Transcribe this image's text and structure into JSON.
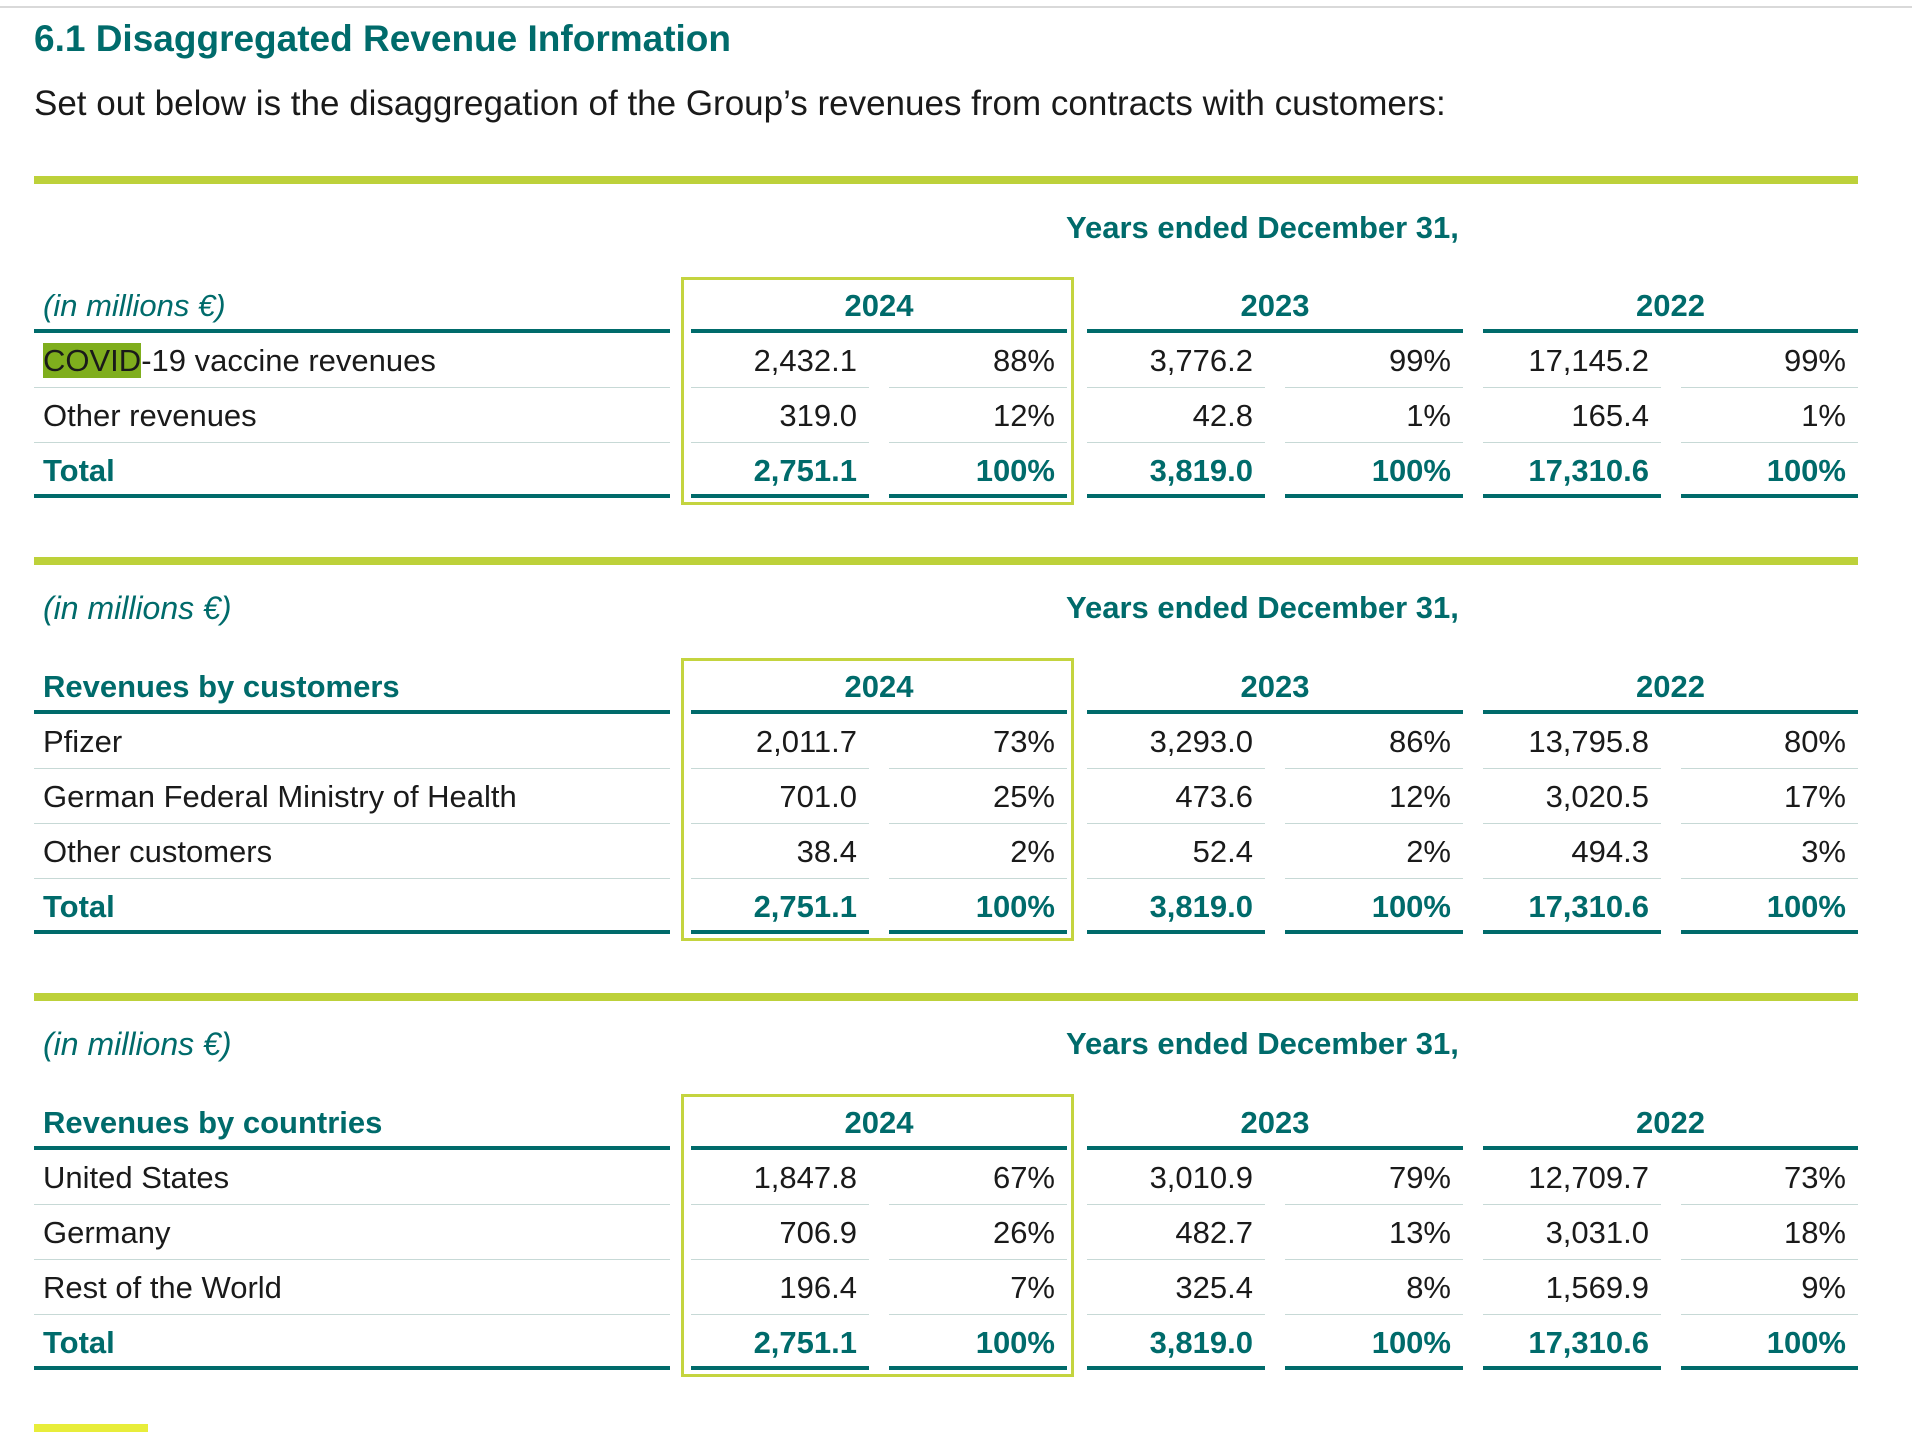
{
  "heading": "6.1 Disaggregated Revenue Information",
  "intro": "Set out below is the disaggregation of the Group’s revenues from contracts with customers:",
  "colors": {
    "accent_teal": "#006b6b",
    "accent_green": "#bdd13a",
    "highlight_2024": "#c4d43f"
  },
  "years_ended_label": "Years ended December 31,",
  "years": [
    "2024",
    "2023",
    "2022"
  ],
  "table1": {
    "unit_label": "(in millions €)",
    "rows": [
      {
        "label_highlight": "COVID",
        "label_rest": "-19 vaccine revenues",
        "values": [
          "2,432.1",
          "88%",
          "3,776.2",
          "99%",
          "17,145.2",
          "99%"
        ]
      },
      {
        "label": "Other revenues",
        "values": [
          "319.0",
          "12%",
          "42.8",
          "1%",
          "165.4",
          "1%"
        ]
      }
    ],
    "total": {
      "label": "Total",
      "values": [
        "2,751.1",
        "100%",
        "3,819.0",
        "100%",
        "17,310.6",
        "100%"
      ]
    }
  },
  "table2": {
    "unit_label": "(in millions €)",
    "header_label": "Revenues by customers",
    "rows": [
      {
        "label": "Pfizer",
        "values": [
          "2,011.7",
          "73%",
          "3,293.0",
          "86%",
          "13,795.8",
          "80%"
        ]
      },
      {
        "label": "German Federal Ministry of Health",
        "values": [
          "701.0",
          "25%",
          "473.6",
          "12%",
          "3,020.5",
          "17%"
        ]
      },
      {
        "label": "Other customers",
        "values": [
          "38.4",
          "2%",
          "52.4",
          "2%",
          "494.3",
          "3%"
        ]
      }
    ],
    "total": {
      "label": "Total",
      "values": [
        "2,751.1",
        "100%",
        "3,819.0",
        "100%",
        "17,310.6",
        "100%"
      ]
    }
  },
  "table3": {
    "unit_label": "(in millions €)",
    "header_label": "Revenues by countries",
    "rows": [
      {
        "label": "United States",
        "values": [
          "1,847.8",
          "67%",
          "3,010.9",
          "79%",
          "12,709.7",
          "73%"
        ]
      },
      {
        "label": "Germany",
        "values": [
          "706.9",
          "26%",
          "482.7",
          "13%",
          "3,031.0",
          "18%"
        ]
      },
      {
        "label": "Rest of the World",
        "values": [
          "196.4",
          "7%",
          "325.4",
          "8%",
          "1,569.9",
          "9%"
        ]
      }
    ],
    "total": {
      "label": "Total",
      "values": [
        "2,751.1",
        "100%",
        "3,819.0",
        "100%",
        "17,310.6",
        "100%"
      ]
    }
  }
}
